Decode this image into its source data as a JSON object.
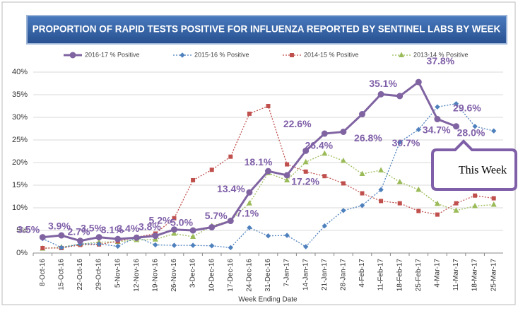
{
  "chart_data": {
    "type": "line",
    "title": "PROPORTION OF RAPID TESTS POSITIVE FOR INFLUENZA REPORTED BY SENTINEL LABS BY WEEK",
    "x_label": "Week Ending Date",
    "annotation": "This Week",
    "categories": [
      "8-Oct-16",
      "15-Oct-16",
      "22-Oct-16",
      "29-Oct-16",
      "5-Nov-16",
      "12-Nov-16",
      "19-Nov-16",
      "26-Nov-16",
      "3-Dec-16",
      "10-Dec-16",
      "17-Dec-16",
      "24-Dec-16",
      "31-Dec-16",
      "7-Jan-17",
      "14-Jan-17",
      "21-Jan-17",
      "28-Jan-17",
      "4-Feb-17",
      "11-Feb-17",
      "18-Feb-17",
      "25-Feb-17",
      "4-Mar-17",
      "11-Mar-17",
      "18-Mar-17",
      "25-Mar-17"
    ],
    "series": [
      {
        "name": "2016-17 % Positive",
        "color": "#8064a2",
        "marker": "circle",
        "values": [
          3.5,
          3.9,
          2.7,
          3.5,
          3.1,
          3.4,
          3.8,
          5.2,
          5.0,
          5.7,
          7.1,
          13.4,
          18.1,
          17.2,
          22.6,
          26.4,
          26.8,
          30.7,
          35.1,
          34.7,
          37.8,
          29.6,
          28.0,
          null,
          null
        ],
        "value_labels": [
          "3.5%",
          "3.9%",
          "2.7%",
          "3.5%",
          "3.1%",
          "3.4%",
          "3.8%",
          "5.2%",
          "5.0%",
          "5.7%",
          "7.1%",
          "13.4%",
          "18.1%",
          "17.2%",
          "22.6%",
          "26.4%",
          "26.8%",
          "30.7%",
          "35.1%",
          "34.7%",
          "37.8%",
          "29.6%",
          "28.0%",
          null,
          null
        ]
      },
      {
        "name": "2015-16 % Positive",
        "color": "#4f81bd",
        "marker": "diamond",
        "values": [
          3.2,
          1.2,
          2.0,
          2.0,
          1.5,
          3.5,
          1.8,
          1.7,
          1.7,
          1.6,
          1.2,
          5.6,
          3.8,
          3.9,
          1.4,
          6.0,
          9.4,
          10.5,
          14.0,
          24.5,
          27.3,
          32.3,
          33.0,
          28.0,
          27.0
        ]
      },
      {
        "name": "2014-15 % Positive",
        "color": "#c0504d",
        "marker": "square",
        "values": [
          1.1,
          1.1,
          1.8,
          1.9,
          2.6,
          3.5,
          4.3,
          7.7,
          16.1,
          18.4,
          21.3,
          30.8,
          32.5,
          19.6,
          18.0,
          17.0,
          15.4,
          13.2,
          11.5,
          11.0,
          9.3,
          8.5,
          11.0,
          12.7,
          12.1
        ]
      },
      {
        "name": "2013-14 % Positive",
        "color": "#9bbb59",
        "marker": "triangle",
        "values": [
          1.0,
          1.3,
          2.0,
          2.4,
          2.5,
          2.9,
          3.0,
          4.3,
          3.6,
          6.0,
          7.2,
          11.0,
          17.7,
          16.1,
          20.1,
          22.0,
          20.4,
          17.5,
          18.3,
          15.7,
          14.0,
          10.9,
          9.4,
          10.4,
          10.7
        ]
      }
    ],
    "ylim": [
      0,
      40
    ],
    "yticks": [
      {
        "value": 0,
        "label": "0%"
      },
      {
        "value": 5,
        "label": "5%"
      },
      {
        "value": 10,
        "label": "10%"
      },
      {
        "value": 15,
        "label": "15%"
      },
      {
        "value": 20,
        "label": "20%"
      },
      {
        "value": 25,
        "label": "25%"
      },
      {
        "value": 30,
        "label": "30%"
      },
      {
        "value": 35,
        "label": "35%"
      },
      {
        "value": 40,
        "label": "40%"
      }
    ],
    "grid": true
  }
}
